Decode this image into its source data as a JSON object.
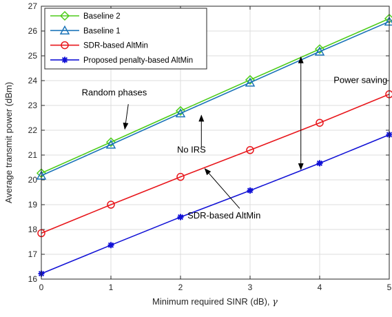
{
  "chart_data": {
    "type": "line",
    "xlabel": "Minimum required SINR (dB), ",
    "xlabel_symbol": "γ",
    "ylabel": "Average transmit power (dBm)",
    "xlim": [
      0,
      5
    ],
    "ylim": [
      16,
      27
    ],
    "xticks": [
      "0",
      "1",
      "2",
      "3",
      "4",
      "5"
    ],
    "yticks": [
      "16",
      "17",
      "18",
      "19",
      "20",
      "21",
      "22",
      "23",
      "24",
      "25",
      "26",
      "27"
    ],
    "grid": true,
    "legend_position": "top-left",
    "x": [
      0,
      1,
      2,
      3,
      4,
      5
    ],
    "series": [
      {
        "name": "Baseline 2",
        "color": "#4dcc1a",
        "marker": "diamond",
        "values": [
          20.27,
          21.52,
          22.78,
          24.03,
          25.27,
          26.5
        ]
      },
      {
        "name": "Baseline 1",
        "color": "#1a73b8",
        "marker": "triangle",
        "values": [
          20.17,
          21.42,
          22.68,
          23.92,
          25.17,
          26.38
        ]
      },
      {
        "name": "SDR-based AltMin",
        "color": "#e8161b",
        "marker": "circle",
        "values": [
          17.85,
          19.0,
          20.12,
          21.2,
          22.3,
          23.45
        ]
      },
      {
        "name": "Proposed penalty-based AltMin",
        "color": "#1212d6",
        "marker": "star",
        "values": [
          16.22,
          17.37,
          18.5,
          19.57,
          20.67,
          21.82
        ]
      }
    ],
    "annotations": [
      {
        "text": "Random phases",
        "text_at": [
          0.58,
          23.4
        ],
        "arrow_from": [
          1.25,
          23.05
        ],
        "arrow_to": [
          1.2,
          22.05
        ]
      },
      {
        "text": "No IRS",
        "text_at": [
          1.95,
          21.1
        ],
        "arrow_from": [
          2.3,
          21.3
        ],
        "arrow_to": [
          2.3,
          22.6
        ]
      },
      {
        "text": "Power saving",
        "text_at": [
          4.2,
          23.9
        ]
      },
      {
        "text": "SDR-based AltMin",
        "text_at": [
          2.1,
          18.45
        ],
        "arrow_from": [
          2.85,
          18.85
        ],
        "arrow_to": [
          2.35,
          20.45
        ]
      }
    ],
    "double_arrow": {
      "x": 3.73,
      "y_top": 24.95,
      "y_bottom": 20.42
    }
  }
}
